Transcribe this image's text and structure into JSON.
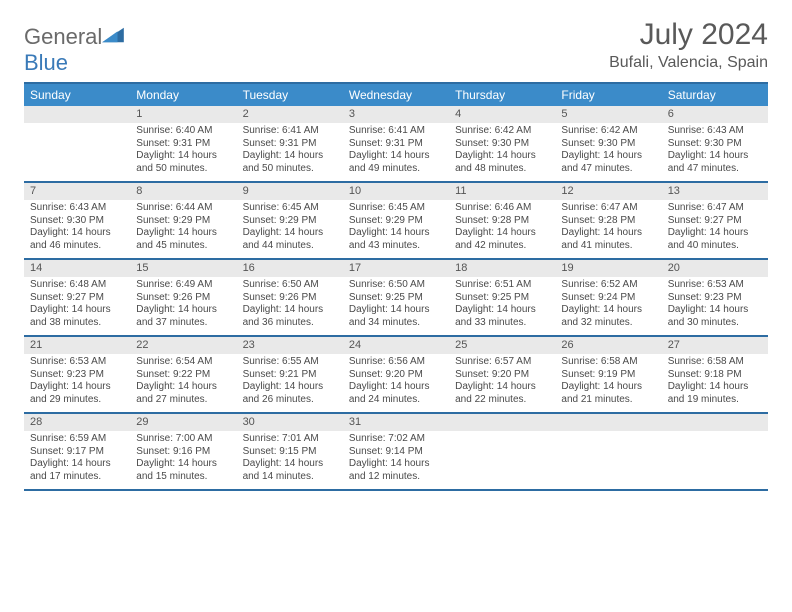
{
  "logo": {
    "text_left": "General",
    "text_right": "Blue"
  },
  "title": "July 2024",
  "location": "Bufali, Valencia, Spain",
  "colors": {
    "header_bg": "#3b8bc9",
    "header_text": "#ffffff",
    "border": "#2d6ca2",
    "daynum_bg": "#e9e9e9",
    "text": "#4a4a4a",
    "title_text": "#595959"
  },
  "daynames": [
    "Sunday",
    "Monday",
    "Tuesday",
    "Wednesday",
    "Thursday",
    "Friday",
    "Saturday"
  ],
  "weeks": [
    [
      {
        "num": "",
        "lines": []
      },
      {
        "num": "1",
        "lines": [
          "Sunrise: 6:40 AM",
          "Sunset: 9:31 PM",
          "Daylight: 14 hours and 50 minutes."
        ]
      },
      {
        "num": "2",
        "lines": [
          "Sunrise: 6:41 AM",
          "Sunset: 9:31 PM",
          "Daylight: 14 hours and 50 minutes."
        ]
      },
      {
        "num": "3",
        "lines": [
          "Sunrise: 6:41 AM",
          "Sunset: 9:31 PM",
          "Daylight: 14 hours and 49 minutes."
        ]
      },
      {
        "num": "4",
        "lines": [
          "Sunrise: 6:42 AM",
          "Sunset: 9:30 PM",
          "Daylight: 14 hours and 48 minutes."
        ]
      },
      {
        "num": "5",
        "lines": [
          "Sunrise: 6:42 AM",
          "Sunset: 9:30 PM",
          "Daylight: 14 hours and 47 minutes."
        ]
      },
      {
        "num": "6",
        "lines": [
          "Sunrise: 6:43 AM",
          "Sunset: 9:30 PM",
          "Daylight: 14 hours and 47 minutes."
        ]
      }
    ],
    [
      {
        "num": "7",
        "lines": [
          "Sunrise: 6:43 AM",
          "Sunset: 9:30 PM",
          "Daylight: 14 hours and 46 minutes."
        ]
      },
      {
        "num": "8",
        "lines": [
          "Sunrise: 6:44 AM",
          "Sunset: 9:29 PM",
          "Daylight: 14 hours and 45 minutes."
        ]
      },
      {
        "num": "9",
        "lines": [
          "Sunrise: 6:45 AM",
          "Sunset: 9:29 PM",
          "Daylight: 14 hours and 44 minutes."
        ]
      },
      {
        "num": "10",
        "lines": [
          "Sunrise: 6:45 AM",
          "Sunset: 9:29 PM",
          "Daylight: 14 hours and 43 minutes."
        ]
      },
      {
        "num": "11",
        "lines": [
          "Sunrise: 6:46 AM",
          "Sunset: 9:28 PM",
          "Daylight: 14 hours and 42 minutes."
        ]
      },
      {
        "num": "12",
        "lines": [
          "Sunrise: 6:47 AM",
          "Sunset: 9:28 PM",
          "Daylight: 14 hours and 41 minutes."
        ]
      },
      {
        "num": "13",
        "lines": [
          "Sunrise: 6:47 AM",
          "Sunset: 9:27 PM",
          "Daylight: 14 hours and 40 minutes."
        ]
      }
    ],
    [
      {
        "num": "14",
        "lines": [
          "Sunrise: 6:48 AM",
          "Sunset: 9:27 PM",
          "Daylight: 14 hours and 38 minutes."
        ]
      },
      {
        "num": "15",
        "lines": [
          "Sunrise: 6:49 AM",
          "Sunset: 9:26 PM",
          "Daylight: 14 hours and 37 minutes."
        ]
      },
      {
        "num": "16",
        "lines": [
          "Sunrise: 6:50 AM",
          "Sunset: 9:26 PM",
          "Daylight: 14 hours and 36 minutes."
        ]
      },
      {
        "num": "17",
        "lines": [
          "Sunrise: 6:50 AM",
          "Sunset: 9:25 PM",
          "Daylight: 14 hours and 34 minutes."
        ]
      },
      {
        "num": "18",
        "lines": [
          "Sunrise: 6:51 AM",
          "Sunset: 9:25 PM",
          "Daylight: 14 hours and 33 minutes."
        ]
      },
      {
        "num": "19",
        "lines": [
          "Sunrise: 6:52 AM",
          "Sunset: 9:24 PM",
          "Daylight: 14 hours and 32 minutes."
        ]
      },
      {
        "num": "20",
        "lines": [
          "Sunrise: 6:53 AM",
          "Sunset: 9:23 PM",
          "Daylight: 14 hours and 30 minutes."
        ]
      }
    ],
    [
      {
        "num": "21",
        "lines": [
          "Sunrise: 6:53 AM",
          "Sunset: 9:23 PM",
          "Daylight: 14 hours and 29 minutes."
        ]
      },
      {
        "num": "22",
        "lines": [
          "Sunrise: 6:54 AM",
          "Sunset: 9:22 PM",
          "Daylight: 14 hours and 27 minutes."
        ]
      },
      {
        "num": "23",
        "lines": [
          "Sunrise: 6:55 AM",
          "Sunset: 9:21 PM",
          "Daylight: 14 hours and 26 minutes."
        ]
      },
      {
        "num": "24",
        "lines": [
          "Sunrise: 6:56 AM",
          "Sunset: 9:20 PM",
          "Daylight: 14 hours and 24 minutes."
        ]
      },
      {
        "num": "25",
        "lines": [
          "Sunrise: 6:57 AM",
          "Sunset: 9:20 PM",
          "Daylight: 14 hours and 22 minutes."
        ]
      },
      {
        "num": "26",
        "lines": [
          "Sunrise: 6:58 AM",
          "Sunset: 9:19 PM",
          "Daylight: 14 hours and 21 minutes."
        ]
      },
      {
        "num": "27",
        "lines": [
          "Sunrise: 6:58 AM",
          "Sunset: 9:18 PM",
          "Daylight: 14 hours and 19 minutes."
        ]
      }
    ],
    [
      {
        "num": "28",
        "lines": [
          "Sunrise: 6:59 AM",
          "Sunset: 9:17 PM",
          "Daylight: 14 hours and 17 minutes."
        ]
      },
      {
        "num": "29",
        "lines": [
          "Sunrise: 7:00 AM",
          "Sunset: 9:16 PM",
          "Daylight: 14 hours and 15 minutes."
        ]
      },
      {
        "num": "30",
        "lines": [
          "Sunrise: 7:01 AM",
          "Sunset: 9:15 PM",
          "Daylight: 14 hours and 14 minutes."
        ]
      },
      {
        "num": "31",
        "lines": [
          "Sunrise: 7:02 AM",
          "Sunset: 9:14 PM",
          "Daylight: 14 hours and 12 minutes."
        ]
      },
      {
        "num": "",
        "lines": []
      },
      {
        "num": "",
        "lines": []
      },
      {
        "num": "",
        "lines": []
      }
    ]
  ]
}
